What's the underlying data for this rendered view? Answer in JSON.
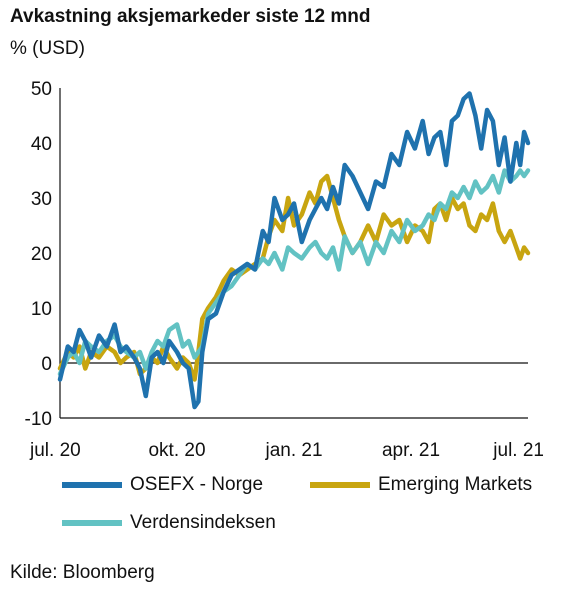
{
  "title": "Avkastning aksjemarkeder siste 12 mnd",
  "unit_label": "% (USD)",
  "source": "Kilde: Bloomberg",
  "chart_data": {
    "type": "line",
    "title": "Avkastning aksjemarkeder siste 12 mnd",
    "ylabel": "% (USD)",
    "xlabel": "",
    "ylim": [
      -10,
      50
    ],
    "yticks": [
      50,
      40,
      30,
      20,
      10,
      0,
      -10
    ],
    "xlim": [
      0,
      12
    ],
    "xticks": [
      {
        "x": 0,
        "label": "jul. 20"
      },
      {
        "x": 3,
        "label": "okt. 20"
      },
      {
        "x": 6,
        "label": "jan. 21"
      },
      {
        "x": 9,
        "label": "apr. 21"
      },
      {
        "x": 12,
        "label": "jul. 21"
      }
    ],
    "grid": false,
    "legend": "bottom",
    "series": [
      {
        "name": "OSEFX - Norge",
        "color": "#1f72ae",
        "x": [
          0,
          0.2,
          0.35,
          0.5,
          0.65,
          0.8,
          1,
          1.2,
          1.4,
          1.55,
          1.7,
          1.9,
          2.05,
          2.2,
          2.35,
          2.5,
          2.65,
          2.8,
          3,
          3.15,
          3.3,
          3.45,
          3.55,
          3.65,
          3.8,
          4,
          4.2,
          4.4,
          4.6,
          4.8,
          5,
          5.2,
          5.35,
          5.5,
          5.7,
          5.85,
          6,
          6.2,
          6.4,
          6.55,
          6.7,
          6.85,
          7,
          7.15,
          7.3,
          7.5,
          7.7,
          7.9,
          8.1,
          8.3,
          8.5,
          8.7,
          8.9,
          9.1,
          9.3,
          9.45,
          9.6,
          9.75,
          9.9,
          10.05,
          10.2,
          10.35,
          10.5,
          10.65,
          10.8,
          10.95,
          11.1,
          11.25,
          11.4,
          11.55,
          11.7,
          11.8,
          11.9,
          12
        ],
        "y": [
          -3,
          3,
          2,
          6,
          4,
          1,
          5,
          3,
          7,
          2,
          3,
          1,
          -1,
          -6,
          1,
          2,
          0,
          4,
          2,
          0,
          -1,
          -8,
          -7,
          2,
          8,
          9,
          13,
          16,
          17,
          18,
          17,
          24,
          22,
          30,
          26,
          27,
          29,
          22,
          26,
          28,
          30,
          28,
          32,
          29,
          36,
          34,
          31,
          28,
          33,
          32,
          38,
          36,
          42,
          39,
          44,
          38,
          41,
          42,
          36,
          44,
          45,
          48,
          49,
          45,
          39,
          46,
          44,
          36,
          41,
          33,
          40,
          36,
          42,
          40
        ]
      },
      {
        "name": "Emerging Markets",
        "color": "#c8a510",
        "x": [
          0,
          0.2,
          0.35,
          0.5,
          0.65,
          0.8,
          1,
          1.2,
          1.4,
          1.55,
          1.7,
          1.9,
          2.05,
          2.2,
          2.35,
          2.5,
          2.65,
          2.8,
          3,
          3.15,
          3.3,
          3.45,
          3.55,
          3.65,
          3.8,
          4,
          4.2,
          4.4,
          4.6,
          4.8,
          5,
          5.2,
          5.35,
          5.5,
          5.7,
          5.85,
          6,
          6.2,
          6.4,
          6.55,
          6.7,
          6.85,
          7,
          7.15,
          7.3,
          7.5,
          7.7,
          7.9,
          8.1,
          8.3,
          8.5,
          8.7,
          8.9,
          9.1,
          9.3,
          9.45,
          9.6,
          9.75,
          9.9,
          10.05,
          10.2,
          10.35,
          10.5,
          10.65,
          10.8,
          10.95,
          11.1,
          11.25,
          11.4,
          11.55,
          11.7,
          11.8,
          11.9,
          12
        ],
        "y": [
          -1,
          2,
          1,
          3,
          -1,
          2,
          1,
          3,
          2,
          0,
          1,
          2,
          -2,
          -1,
          1,
          0,
          3,
          1,
          -1,
          1,
          0,
          -3,
          2,
          8,
          10,
          12,
          15,
          17,
          16,
          17,
          18,
          19,
          23,
          26,
          24,
          30,
          25,
          27,
          31,
          29,
          33,
          34,
          30,
          26,
          23,
          20,
          22,
          25,
          22,
          27,
          25,
          26,
          22,
          25,
          24,
          22,
          28,
          29,
          26,
          30,
          28,
          29,
          25,
          24,
          27,
          26,
          29,
          24,
          22,
          24,
          21,
          19,
          21,
          20
        ]
      },
      {
        "name": "Verdensindeksen",
        "color": "#62c2c3",
        "x": [
          0,
          0.2,
          0.35,
          0.5,
          0.65,
          0.8,
          1,
          1.2,
          1.4,
          1.55,
          1.7,
          1.9,
          2.05,
          2.2,
          2.35,
          2.5,
          2.65,
          2.8,
          3,
          3.15,
          3.3,
          3.45,
          3.55,
          3.65,
          3.8,
          4,
          4.2,
          4.4,
          4.6,
          4.8,
          5,
          5.2,
          5.35,
          5.5,
          5.7,
          5.85,
          6,
          6.2,
          6.4,
          6.55,
          6.7,
          6.85,
          7,
          7.15,
          7.3,
          7.5,
          7.7,
          7.9,
          8.1,
          8.3,
          8.5,
          8.7,
          8.9,
          9.1,
          9.3,
          9.45,
          9.6,
          9.75,
          9.9,
          10.05,
          10.2,
          10.35,
          10.5,
          10.65,
          10.8,
          10.95,
          11.1,
          11.25,
          11.4,
          11.55,
          11.7,
          11.8,
          11.9,
          12
        ],
        "y": [
          -2,
          1,
          2,
          0,
          4,
          3,
          2,
          4,
          5,
          3,
          2,
          1,
          2,
          -1,
          2,
          4,
          3,
          6,
          7,
          3,
          4,
          1,
          2,
          3,
          9,
          11,
          13,
          14,
          16,
          18,
          17,
          19,
          18,
          20,
          17,
          21,
          20,
          19,
          21,
          22,
          20,
          19,
          21,
          17,
          23,
          20,
          22,
          18,
          22,
          20,
          24,
          22,
          26,
          24,
          25,
          27,
          26,
          29,
          28,
          31,
          30,
          32,
          30,
          33,
          31,
          32,
          34,
          31,
          35,
          33,
          34,
          35,
          34,
          35
        ]
      }
    ]
  }
}
